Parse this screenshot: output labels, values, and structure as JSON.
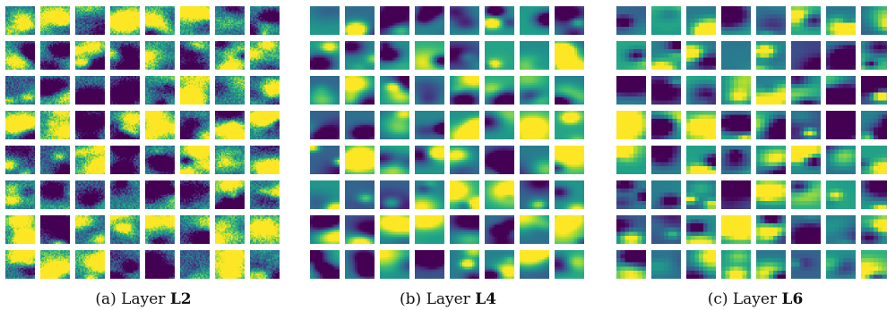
{
  "figure": {
    "panels": [
      {
        "id": "a",
        "prefix": "(a) Layer ",
        "layer": "L2",
        "rows": 8,
        "cols": 8,
        "cell_resolution": 24
      },
      {
        "id": "b",
        "prefix": "(b) Layer ",
        "layer": "L4",
        "rows": 8,
        "cols": 8,
        "cell_resolution": 12
      },
      {
        "id": "c",
        "prefix": "(c) Layer ",
        "layer": "L6",
        "rows": 8,
        "cols": 8,
        "cell_resolution": 7
      }
    ],
    "colormap": "viridis",
    "colors": {
      "low": "#440154",
      "mid": "#21918c",
      "high": "#fde725"
    }
  }
}
